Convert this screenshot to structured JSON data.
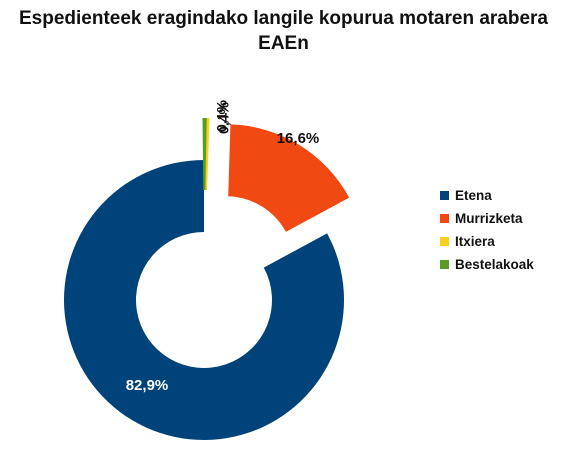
{
  "chart_data": {
    "type": "pie",
    "style": "donut-exploded",
    "title_lines": [
      "Espedienteek eragindako langile kopurua motaren arabera",
      "EAEn"
    ],
    "slices": [
      {
        "name": "Etena",
        "value": 82.9,
        "label": "82,9%",
        "color": "#00427a",
        "label_color": "#ffffff"
      },
      {
        "name": "Murrizketa",
        "value": 16.6,
        "label": "16,6%",
        "color": "#f04a12",
        "label_color": "#111111"
      },
      {
        "name": "Itxiera",
        "value": 0.4,
        "label": "0,4%",
        "color": "#f5d21c",
        "label_color": "#111111"
      },
      {
        "name": "Bestelakoak",
        "value": 0.1,
        "label": "0,1%",
        "color": "#5a9b25",
        "label_color": "#111111"
      }
    ],
    "legend_position": "right"
  }
}
